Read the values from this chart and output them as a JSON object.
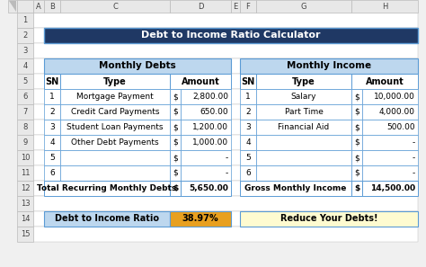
{
  "title": "Debt to Income Ratio Calculator",
  "title_bg": "#1F3864",
  "title_color": "#FFFFFF",
  "header_bg": "#BDD7EE",
  "debt_section_header": "Monthly Debts",
  "income_section_header": "Monthly Income",
  "debt_rows": [
    [
      "1",
      "Mortgage Payment",
      "$",
      "2,800.00"
    ],
    [
      "2",
      "Credit Card Payments",
      "$",
      "650.00"
    ],
    [
      "3",
      "Student Loan Payments",
      "$",
      "1,200.00"
    ],
    [
      "4",
      "Other Debt Payments",
      "$",
      "1,000.00"
    ],
    [
      "5",
      "",
      "$",
      "-"
    ],
    [
      "6",
      "",
      "$",
      "-"
    ]
  ],
  "income_rows": [
    [
      "1",
      "Salary",
      "$",
      "10,000.00"
    ],
    [
      "2",
      "Part Time",
      "$",
      "4,000.00"
    ],
    [
      "3",
      "Financial Aid",
      "$",
      "500.00"
    ],
    [
      "4",
      "",
      "$",
      "-"
    ],
    [
      "5",
      "",
      "$",
      "-"
    ],
    [
      "6",
      "",
      "$",
      "-"
    ]
  ],
  "debt_total_label": "Total Recurring Monthly Debts",
  "debt_total_value": "5,650.00",
  "income_total_label": "Gross Monthly Income",
  "income_total_value": "14,500.00",
  "ratio_label": "Debt to Income Ratio",
  "ratio_value": "38.97%",
  "ratio_value_bg": "#E8A020",
  "ratio_suggestion": "Reduce Your Debts!",
  "ratio_suggestion_bg": "#FEFBD0",
  "ratio_label_bg": "#BDD7EE",
  "border_color": "#5B9BD5",
  "excel_header_bg": "#E8E8E8",
  "excel_header_border": "#BBBBBB",
  "fig_bg": "#F0F0F0",
  "white": "#FFFFFF",
  "col_letters": [
    "A",
    "B",
    "C",
    "D",
    "E",
    "F",
    "G",
    "H",
    ""
  ],
  "num_rows": 15
}
